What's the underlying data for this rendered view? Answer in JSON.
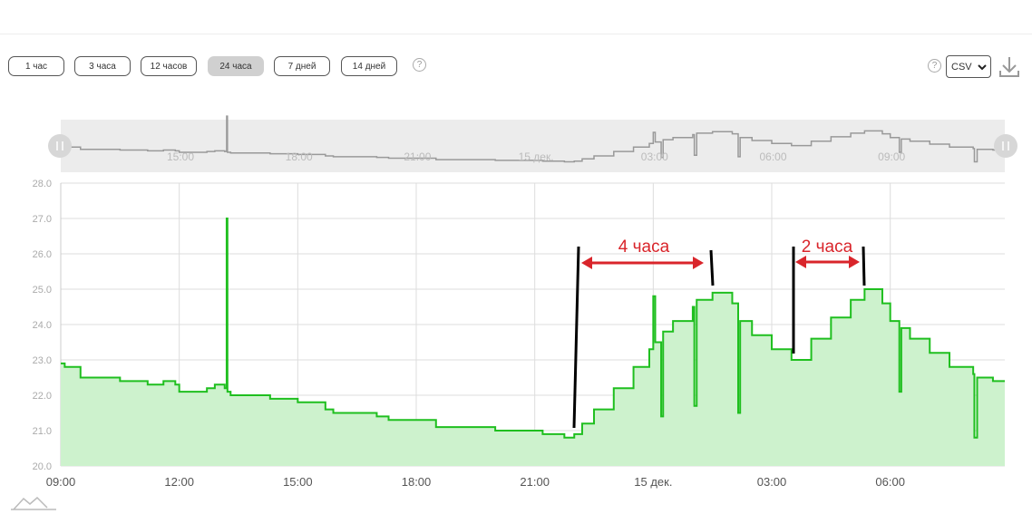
{
  "toolbar": {
    "buttons": [
      "1 час",
      "3 часа",
      "12 часов",
      "24 часа",
      "7 дней",
      "14 дней"
    ],
    "active": 3,
    "help": "?",
    "format": "CSV"
  },
  "navigator": {
    "labels": [
      "15:00",
      "18:00",
      "21:00",
      "15 дек.",
      "03:00",
      "06:00",
      "09:00"
    ]
  },
  "chart_data": {
    "type": "line",
    "color": "#1fbf1f",
    "fill": "#cdf2cd",
    "step": true,
    "grid": true,
    "x": [
      9.0,
      9.1,
      9.5,
      10.5,
      11.2,
      11.6,
      11.9,
      12.0,
      12.6,
      12.7,
      12.9,
      13.15,
      13.2,
      13.22,
      13.3,
      14.1,
      14.3,
      15.0,
      15.7,
      15.9,
      16.2,
      17.0,
      17.3,
      18.2,
      18.5,
      19.8,
      20.0,
      21.1,
      21.2,
      21.7,
      21.75,
      22.0,
      22.2,
      22.5,
      23.0,
      23.5,
      23.9,
      24.0,
      24.05,
      24.2,
      24.25,
      24.5,
      25.0,
      25.04,
      25.1,
      25.5,
      26.0,
      26.15,
      26.2,
      26.5,
      27.0,
      27.5,
      28.0,
      28.5,
      29.0,
      29.35,
      29.8,
      30.0,
      30.23,
      30.28,
      30.5,
      31.0,
      31.5,
      32.1,
      32.13,
      32.2,
      32.6,
      32.9
    ],
    "series": [
      {
        "name": "temperature",
        "values": [
          22.9,
          22.8,
          22.5,
          22.4,
          22.3,
          22.4,
          22.3,
          22.1,
          22.1,
          22.2,
          22.3,
          22.2,
          27.0,
          22.1,
          22.0,
          22.0,
          21.9,
          21.8,
          21.6,
          21.5,
          21.5,
          21.4,
          21.3,
          21.3,
          21.1,
          21.1,
          21.0,
          21.0,
          20.9,
          20.9,
          20.8,
          20.9,
          21.2,
          21.6,
          22.2,
          22.8,
          23.3,
          24.8,
          23.5,
          21.4,
          23.8,
          24.1,
          24.5,
          21.7,
          24.7,
          24.9,
          24.6,
          21.5,
          24.1,
          23.7,
          23.3,
          23.0,
          23.6,
          24.2,
          24.7,
          25.0,
          24.6,
          24.1,
          22.1,
          23.9,
          23.6,
          23.2,
          22.8,
          22.6,
          20.8,
          22.5,
          22.4,
          22.4
        ]
      }
    ],
    "xlim": [
      9,
      32.9
    ],
    "xticks": [
      {
        "value": 9,
        "label": "09:00"
      },
      {
        "value": 12,
        "label": "12:00"
      },
      {
        "value": 15,
        "label": "15:00"
      },
      {
        "value": 18,
        "label": "18:00"
      },
      {
        "value": 21,
        "label": "21:00"
      },
      {
        "value": 24,
        "label": "15 дек."
      },
      {
        "value": 27,
        "label": "03:00"
      },
      {
        "value": 30,
        "label": "06:00"
      }
    ],
    "ylim": [
      20,
      28
    ],
    "yticks": [
      {
        "value": 20,
        "label": "20.0"
      },
      {
        "value": 21,
        "label": "21.0"
      },
      {
        "value": 22,
        "label": "22.0"
      },
      {
        "value": 23,
        "label": "23.0"
      },
      {
        "value": 24,
        "label": "24.0"
      },
      {
        "value": 25,
        "label": "25.0"
      },
      {
        "value": 26,
        "label": "26.0"
      },
      {
        "value": 27,
        "label": "27.0"
      },
      {
        "value": 28,
        "label": "28.0"
      }
    ],
    "annotations": [
      "4 часа",
      "2 часа"
    ]
  }
}
